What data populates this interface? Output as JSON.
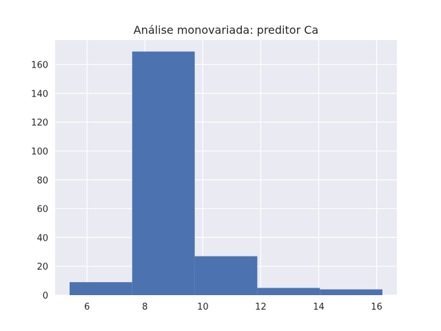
{
  "chart_data": {
    "type": "bar",
    "title": "Análise monovariada: preditor Ca",
    "xlabel": "",
    "ylabel": "",
    "xlim": [
      4.9,
      16.7
    ],
    "ylim": [
      0,
      177
    ],
    "grid": true,
    "x_ticks": [
      6,
      8,
      10,
      12,
      14,
      16
    ],
    "y_ticks": [
      0,
      20,
      40,
      60,
      80,
      100,
      120,
      140,
      160
    ],
    "bins": [
      {
        "start": 5.4,
        "end": 7.56,
        "value": 9
      },
      {
        "start": 7.56,
        "end": 9.72,
        "value": 169
      },
      {
        "start": 9.72,
        "end": 11.88,
        "value": 27
      },
      {
        "start": 11.88,
        "end": 14.04,
        "value": 5
      },
      {
        "start": 14.04,
        "end": 16.2,
        "value": 4
      }
    ]
  },
  "colors": {
    "background": "#ffffff",
    "plot_background": "#eaeaf2",
    "grid": "#ffffff",
    "bar": "#4c72b0",
    "text": "#262626"
  }
}
